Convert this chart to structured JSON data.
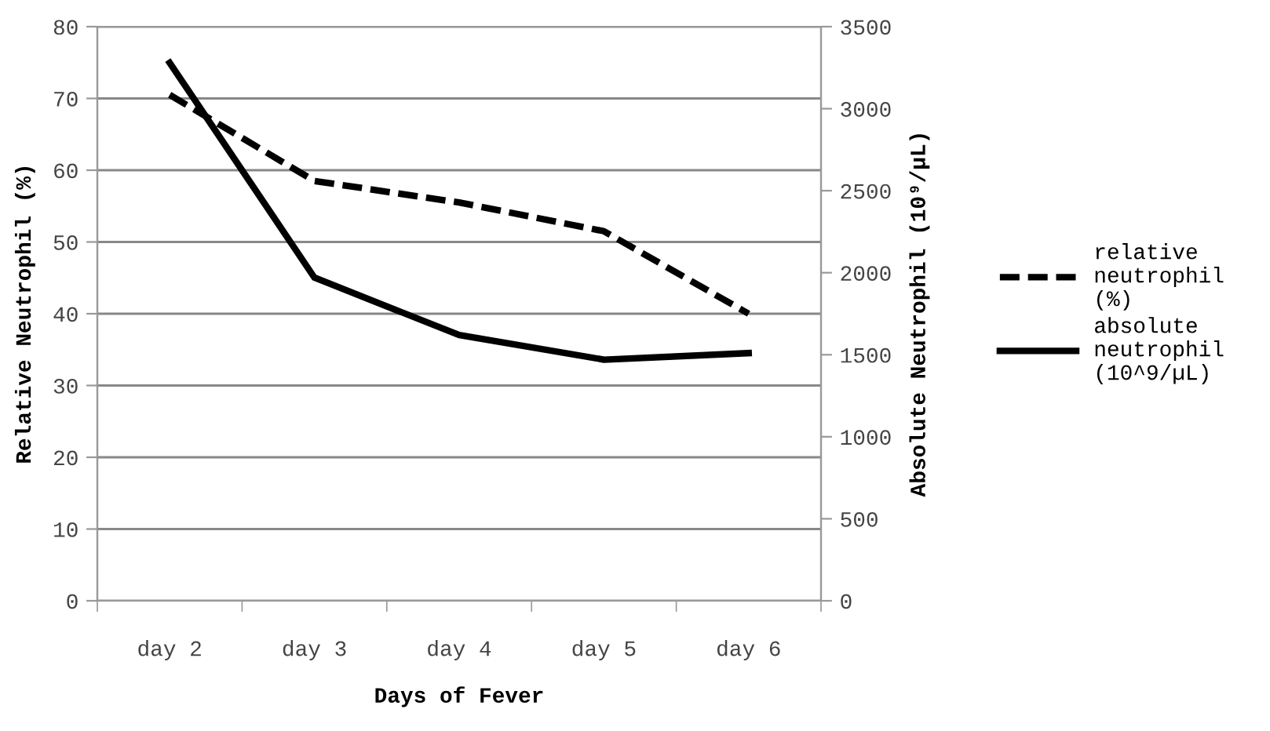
{
  "chart_data": {
    "type": "line",
    "xlabel": "Days of Fever",
    "ylabel": "Relative Neutrophil (%)",
    "y2label": "Absolute Neutrophil (10⁹/µL)",
    "categories": [
      "day 2",
      "day 3",
      "day 4",
      "day 5",
      "day 6"
    ],
    "series": [
      {
        "name": "relative\nneutrophil\n(%)",
        "color": "#000000",
        "line_style": "dashed",
        "values": [
          70.5,
          58.5,
          55.5,
          51.5,
          40
        ]
      },
      {
        "name": "absolute\nneutrophil\n(10^9/µL)",
        "color": "#000000",
        "line_style": "solid",
        "axis": "y2",
        "values": [
          3280,
          1970,
          1620,
          1470,
          1510
        ]
      }
    ],
    "ylim": [
      0,
      80
    ],
    "yticks": [
      0,
      10,
      20,
      30,
      40,
      50,
      60,
      70,
      80
    ],
    "y2lim": [
      0,
      3500
    ],
    "y2ticks": [
      0,
      500,
      1000,
      1500,
      2000,
      2500,
      3000,
      3500
    ],
    "grid": "y",
    "legend": "right",
    "marker": "none"
  }
}
